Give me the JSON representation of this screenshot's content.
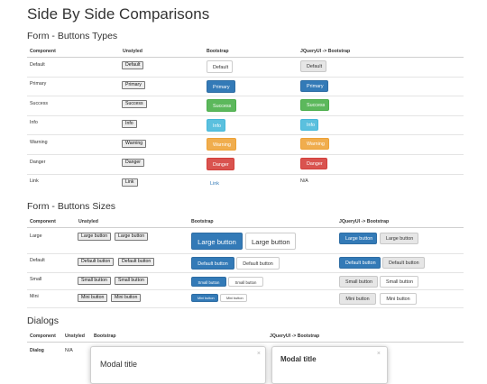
{
  "page": {
    "title": "Side By Side Comparisons"
  },
  "types": {
    "heading": "Form - Buttons Types",
    "headers": [
      "Component",
      "Unstyled",
      "Bootstrap",
      "JQueryUI -> Bootstrap"
    ],
    "rows": [
      {
        "component": "Default",
        "unstyled": "Default",
        "bootstrap": "Default",
        "jqueryui": "Default"
      },
      {
        "component": "Primary",
        "unstyled": "Primary",
        "bootstrap": "Primary",
        "jqueryui": "Primary"
      },
      {
        "component": "Success",
        "unstyled": "Success",
        "bootstrap": "Success",
        "jqueryui": "Success"
      },
      {
        "component": "Info",
        "unstyled": "Info",
        "bootstrap": "Info",
        "jqueryui": "Info"
      },
      {
        "component": "Warning",
        "unstyled": "Warning",
        "bootstrap": "Warning",
        "jqueryui": "Warning"
      },
      {
        "component": "Danger",
        "unstyled": "Danger",
        "bootstrap": "Danger",
        "jqueryui": "Danger"
      },
      {
        "component": "Link",
        "unstyled": "Link",
        "bootstrap": "Link",
        "jqueryui": "N/A"
      }
    ]
  },
  "sizes": {
    "heading": "Form - Buttons Sizes",
    "headers": [
      "Component",
      "Unstyled",
      "Bootstrap",
      "JQueryUI -> Bootstrap"
    ],
    "rows": [
      {
        "component": "Large",
        "label": "Large button"
      },
      {
        "component": "Default",
        "label": "Default button"
      },
      {
        "component": "Small",
        "label": "Small button"
      },
      {
        "component": "Mini",
        "label": "Mini button"
      }
    ]
  },
  "dialogs": {
    "heading": "Dialogs",
    "headers": [
      "Component",
      "Unstyled",
      "Bootstrap",
      "JQueryUI -> Bootstrap"
    ],
    "row": {
      "component": "Dialog",
      "unstyled": "N/A"
    },
    "bootstrap_title": "Modal title",
    "jqueryui_title": "Modal title",
    "close_glyph": "×"
  },
  "colors": {
    "primary": "#337ab7",
    "success": "#5cb85c",
    "info": "#5bc0de",
    "warning": "#f0ad4e",
    "danger": "#d9534f",
    "link": "#337ab7"
  }
}
